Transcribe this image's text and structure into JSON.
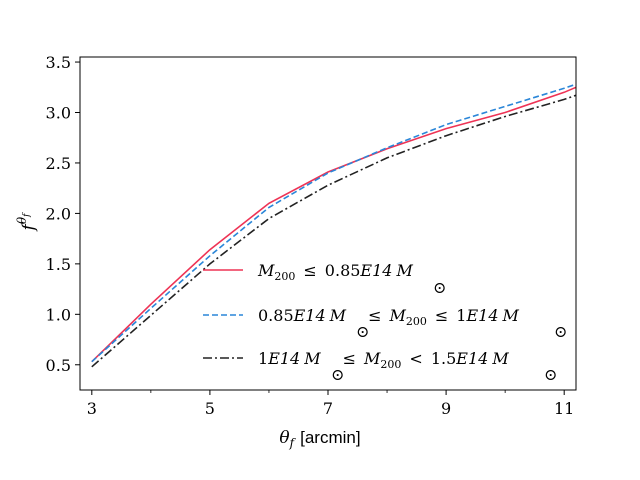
{
  "chart_data": {
    "type": "line",
    "xlabel": "θ_f [arcmin]",
    "ylabel": "f^θf",
    "xlim": [
      2.8,
      11.2
    ],
    "ylim": [
      0.25,
      3.55
    ],
    "xticks": [
      3,
      5,
      7,
      9,
      11
    ],
    "yticks": [
      0.5,
      1.0,
      1.5,
      2.0,
      2.5,
      3.0,
      3.5
    ],
    "x": [
      3,
      4,
      5,
      6,
      7,
      8,
      9,
      10,
      11,
      11.2
    ],
    "legend_position": "lower-right",
    "series": [
      {
        "name": "M200 ≤ 0.85E14 M☉",
        "color": "#ee3355",
        "dash": "solid",
        "values": [
          0.53,
          1.1,
          1.64,
          2.1,
          2.41,
          2.64,
          2.84,
          3.0,
          3.2,
          3.25
        ]
      },
      {
        "name": "0.85E14 M☉ ≤ M200 ≤ 1E14 M☉",
        "color": "#2a86d8",
        "dash": "dashed",
        "values": [
          0.53,
          1.06,
          1.58,
          2.06,
          2.4,
          2.65,
          2.88,
          3.06,
          3.24,
          3.28
        ]
      },
      {
        "name": "1E14 M☉ ≤ M200 < 1.5E14 M☉",
        "color": "#222222",
        "dash": "dashdot",
        "values": [
          0.48,
          0.99,
          1.5,
          1.95,
          2.28,
          2.55,
          2.77,
          2.96,
          3.13,
          3.17
        ]
      }
    ]
  },
  "legend": {
    "entry1": {
      "m": "M",
      "sub200": "200",
      "rel1": "≤",
      "num": "0.85",
      "e14": "E14",
      "msun": "M",
      "sun": "⊙"
    },
    "entry2": {
      "num": "0.85",
      "e14": "E14",
      "msun": "M",
      "sun": "⊙",
      "rel1": "≤",
      "m": "M",
      "sub200": "200",
      "rel2": "≤",
      "num2": "1",
      "e14b": "E14",
      "msun2": "M",
      "sun2": "⊙"
    },
    "entry3": {
      "num": "1",
      "e14": "E14",
      "msun": "M",
      "sun": "⊙",
      "rel1": "≤",
      "m": "M",
      "sub200": "200",
      "rel2": "<",
      "num2": "1.5",
      "e14b": "E14",
      "msun2": "M",
      "sun2": "⊙"
    }
  },
  "axis_text": {
    "xlabel_theta": "θ",
    "xlabel_sub": "f",
    "xlabel_unit": "[arcmin]",
    "ylabel_f": "f",
    "ylabel_sup_theta": "θ",
    "ylabel_sup_sub": "f"
  }
}
